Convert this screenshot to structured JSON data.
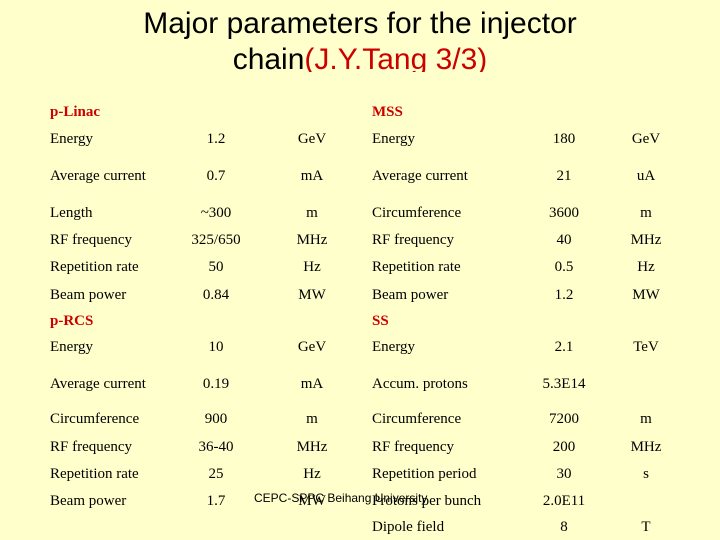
{
  "title": {
    "main": "Major parameters for the injector",
    "line2_prefix": "chain",
    "line2_suffix": "(J.Y.Tang 3/3)"
  },
  "sections": {
    "p_linac": "p-Linac",
    "mss": "MSS",
    "p_rcs": "p-RCS",
    "ss": "SS"
  },
  "rows": [
    {
      "l_param": "Energy",
      "l_value": "1.2",
      "l_unit": "GeV",
      "r_param": "Energy",
      "r_value": "180",
      "r_unit": "GeV"
    },
    {
      "l_param": "Average current",
      "l_value": "0.7",
      "l_unit": "mA",
      "r_param": "Average current",
      "r_value": "21",
      "r_unit": "uA"
    },
    {
      "l_param": "Length",
      "l_value": "~300",
      "l_unit": "m",
      "r_param": "Circumference",
      "r_value": "3600",
      "r_unit": "m"
    },
    {
      "l_param": "RF frequency",
      "l_value": "325/650",
      "l_unit": "MHz",
      "r_param": "RF frequency",
      "r_value": "40",
      "r_unit": "MHz"
    },
    {
      "l_param": "Repetition rate",
      "l_value": "50",
      "l_unit": "Hz",
      "r_param": "Repetition rate",
      "r_value": "0.5",
      "r_unit": "Hz"
    },
    {
      "l_param": "Beam power",
      "l_value": "0.84",
      "l_unit": "MW",
      "r_param": "Beam power",
      "r_value": "1.2",
      "r_unit": "MW"
    },
    {
      "l_param": "Energy",
      "l_value": "10",
      "l_unit": "GeV",
      "r_param": "Energy",
      "r_value": "2.1",
      "r_unit": "TeV"
    },
    {
      "l_param": "Average current",
      "l_value": "0.19",
      "l_unit": "mA",
      "r_param": "Accum. protons",
      "r_value": "5.3E14",
      "r_unit": ""
    },
    {
      "l_param": "Circumference",
      "l_value": "900",
      "l_unit": "m",
      "r_param": "Circumference",
      "r_value": "7200",
      "r_unit": "m"
    },
    {
      "l_param": "RF frequency",
      "l_value": "36-40",
      "l_unit": "MHz",
      "r_param": "RF frequency",
      "r_value": "200",
      "r_unit": "MHz"
    },
    {
      "l_param": "Repetition rate",
      "l_value": "25",
      "l_unit": "Hz",
      "r_param": "Repetition period",
      "r_value": "30",
      "r_unit": "s"
    },
    {
      "l_param": "Beam power",
      "l_value": "1.7",
      "l_unit": "MW",
      "r_param": "Protons per bunch",
      "r_value": "2.0E11",
      "r_unit": ""
    },
    {
      "l_param": "",
      "l_value": "",
      "l_unit": "",
      "r_param": "Dipole field",
      "r_value": "8",
      "r_unit": "T"
    }
  ],
  "footer": "CEPC-SPPC Beihang University"
}
